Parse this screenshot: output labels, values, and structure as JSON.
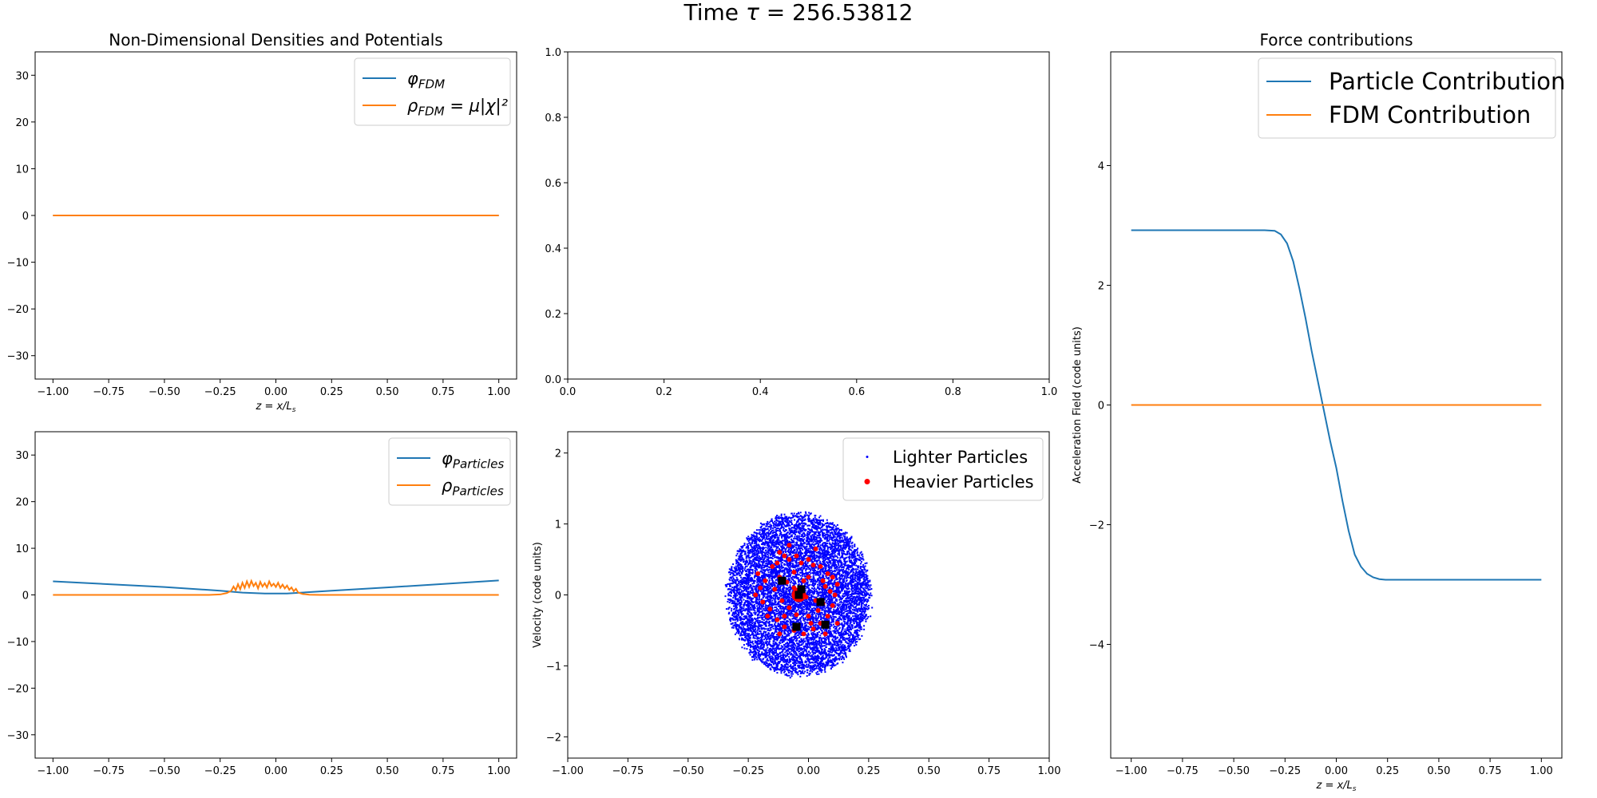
{
  "figure": {
    "suptitle_prefix": "Time ",
    "suptitle_tau": "τ",
    "suptitle_eq": " = 256.53812"
  },
  "colors": {
    "c0": "#1f77b4",
    "c1": "#ff7f0e",
    "light": "#0000ff",
    "heavy": "#ff0000",
    "black_hole": "#000000"
  },
  "chart_data": [
    {
      "id": "fdm",
      "type": "line",
      "title": "Non-Dimensional Densities and Potentials",
      "xlabel": "z = x/L_s",
      "ylabel": "",
      "xlim": [
        -1.08,
        1.08
      ],
      "ylim": [
        -35,
        35
      ],
      "xticks": [
        -1.0,
        -0.75,
        -0.5,
        -0.25,
        0.0,
        0.25,
        0.5,
        0.75,
        1.0
      ],
      "xtick_labels": [
        "−1.00",
        "−0.75",
        "−0.50",
        "−0.25",
        "0.00",
        "0.25",
        "0.50",
        "0.75",
        "1.00"
      ],
      "yticks": [
        -30,
        -20,
        -10,
        0,
        10,
        20,
        30
      ],
      "ytick_labels": [
        "−30",
        "−20",
        "−10",
        "0",
        "10",
        "20",
        "30"
      ],
      "legend_loc": "upper right",
      "series": [
        {
          "name": "φ_FDM",
          "color": "#1f77b4",
          "x": [
            -1.0,
            1.0
          ],
          "y": [
            0.0,
            0.0
          ]
        },
        {
          "name": "ρ_FDM = μ|χ|²",
          "color": "#ff7f0e",
          "x": [
            -1.0,
            1.0
          ],
          "y": [
            0.0,
            0.0
          ]
        }
      ]
    },
    {
      "id": "empty",
      "type": "line",
      "title": "",
      "xlim": [
        0,
        1
      ],
      "ylim": [
        0,
        1
      ],
      "xticks": [
        0,
        0.2,
        0.4,
        0.6,
        0.8,
        1.0
      ],
      "xtick_labels": [
        "0.0",
        "0.2",
        "0.4",
        "0.6",
        "0.8",
        "1.0"
      ],
      "yticks": [
        0,
        0.2,
        0.4,
        0.6,
        0.8,
        1.0
      ],
      "ytick_labels": [
        "0.0",
        "0.2",
        "0.4",
        "0.6",
        "0.8",
        "1.0"
      ],
      "series": []
    },
    {
      "id": "force",
      "type": "line",
      "title": "Force contributions",
      "xlabel": "z = x/L_s",
      "ylabel": "Acceleration Field (code units)",
      "xlim": [
        -1.1,
        1.1
      ],
      "ylim": [
        -5.9,
        5.9
      ],
      "xticks": [
        -1.0,
        -0.75,
        -0.5,
        -0.25,
        0.0,
        0.25,
        0.5,
        0.75,
        1.0
      ],
      "xtick_labels": [
        "−1.00",
        "−0.75",
        "−0.50",
        "−0.25",
        "0.00",
        "0.25",
        "0.50",
        "0.75",
        "1.00"
      ],
      "yticks": [
        -4,
        -2,
        0,
        2,
        4
      ],
      "ytick_labels": [
        "−4",
        "−2",
        "0",
        "2",
        "4"
      ],
      "legend_loc": "upper right",
      "series": [
        {
          "name": "Particle Contribution",
          "color": "#1f77b4",
          "x": [
            -1.0,
            -0.5,
            -0.35,
            -0.3,
            -0.27,
            -0.24,
            -0.21,
            -0.18,
            -0.15,
            -0.12,
            -0.09,
            -0.06,
            -0.03,
            0.0,
            0.03,
            0.06,
            0.09,
            0.12,
            0.15,
            0.18,
            0.21,
            0.24,
            0.3,
            1.0
          ],
          "y": [
            2.92,
            2.92,
            2.92,
            2.91,
            2.85,
            2.7,
            2.4,
            1.95,
            1.45,
            0.9,
            0.4,
            -0.1,
            -0.6,
            -1.05,
            -1.6,
            -2.1,
            -2.5,
            -2.7,
            -2.82,
            -2.88,
            -2.91,
            -2.92,
            -2.92,
            -2.92
          ]
        },
        {
          "name": "FDM Contribution",
          "color": "#ff7f0e",
          "x": [
            -1.0,
            1.0
          ],
          "y": [
            0.0,
            0.0
          ]
        }
      ]
    },
    {
      "id": "particles_pot",
      "type": "line",
      "title": "",
      "xlabel": "",
      "ylabel": "",
      "xlim": [
        -1.08,
        1.08
      ],
      "ylim": [
        -35,
        35
      ],
      "xticks": [
        -1.0,
        -0.75,
        -0.5,
        -0.25,
        0.0,
        0.25,
        0.5,
        0.75,
        1.0
      ],
      "xtick_labels": [
        "−1.00",
        "−0.75",
        "−0.50",
        "−0.25",
        "0.00",
        "0.25",
        "0.50",
        "0.75",
        "1.00"
      ],
      "yticks": [
        -30,
        -20,
        -10,
        0,
        10,
        20,
        30
      ],
      "ytick_labels": [
        "−30",
        "−20",
        "−10",
        "0",
        "10",
        "20",
        "30"
      ],
      "legend_loc": "upper right",
      "series": [
        {
          "name": "φ_Particles",
          "color": "#1f77b4",
          "x": [
            -1.0,
            -0.5,
            -0.25,
            -0.15,
            -0.05,
            0.05,
            0.15,
            0.25,
            0.5,
            1.0
          ],
          "y": [
            2.9,
            1.7,
            0.9,
            0.5,
            0.3,
            0.3,
            0.6,
            0.9,
            1.6,
            3.1
          ]
        },
        {
          "name": "ρ_Particles",
          "color": "#ff7f0e",
          "x": [
            -1.0,
            -0.3,
            -0.25,
            -0.22,
            -0.2,
            -0.19,
            -0.18,
            -0.17,
            -0.16,
            -0.15,
            -0.14,
            -0.13,
            -0.12,
            -0.11,
            -0.1,
            -0.09,
            -0.08,
            -0.07,
            -0.06,
            -0.05,
            -0.04,
            -0.03,
            -0.02,
            -0.01,
            0.0,
            0.01,
            0.02,
            0.03,
            0.04,
            0.05,
            0.06,
            0.07,
            0.08,
            0.09,
            0.1,
            0.12,
            0.15,
            0.2,
            0.25,
            1.0
          ],
          "y": [
            0.0,
            0.0,
            0.1,
            0.4,
            0.9,
            1.8,
            1.0,
            2.3,
            1.2,
            2.6,
            1.5,
            2.9,
            1.7,
            3.0,
            1.9,
            2.6,
            1.4,
            2.8,
            1.8,
            2.5,
            1.6,
            2.9,
            1.9,
            2.4,
            1.7,
            2.6,
            1.5,
            2.2,
            1.4,
            2.0,
            1.1,
            1.6,
            0.8,
            1.3,
            0.5,
            0.2,
            0.05,
            0.0,
            0.0,
            0.0
          ]
        }
      ]
    },
    {
      "id": "phase",
      "type": "scatter",
      "title": "",
      "xlabel": "",
      "ylabel": "Velocity (code units)",
      "xlim": [
        -1.0,
        1.0
      ],
      "ylim": [
        -2.3,
        2.3
      ],
      "xticks": [
        -1.0,
        -0.75,
        -0.5,
        -0.25,
        0.0,
        0.25,
        0.5,
        0.75,
        1.0
      ],
      "xtick_labels": [
        "−1.00",
        "−0.75",
        "−0.50",
        "−0.25",
        "0.00",
        "0.25",
        "0.50",
        "0.75",
        "1.00"
      ],
      "yticks": [
        -2,
        -1,
        0,
        1,
        2
      ],
      "ytick_labels": [
        "−2",
        "−1",
        "0",
        "1",
        "2"
      ],
      "legend_loc": "upper right",
      "light_cloud": {
        "center": [
          -0.04,
          0.0
        ],
        "radius_x": 0.3,
        "radius_y": 1.15
      },
      "series": [
        {
          "name": "Lighter Particles",
          "color": "#0000ff"
        },
        {
          "name": "Heavier Particles",
          "color": "#ff0000"
        }
      ],
      "heavy_points": [
        [
          -0.12,
          0.6
        ],
        [
          -0.1,
          0.55
        ],
        [
          -0.08,
          0.5
        ],
        [
          -0.05,
          0.55
        ],
        [
          -0.03,
          0.45
        ],
        [
          0.0,
          0.5
        ],
        [
          0.02,
          0.42
        ],
        [
          0.05,
          0.4
        ],
        [
          0.08,
          0.3
        ],
        [
          -0.15,
          0.4
        ],
        [
          -0.18,
          0.2
        ],
        [
          -0.2,
          0.1
        ],
        [
          -0.22,
          0.0
        ],
        [
          -0.19,
          -0.1
        ],
        [
          -0.16,
          -0.2
        ],
        [
          -0.13,
          -0.35
        ],
        [
          -0.1,
          -0.45
        ],
        [
          -0.06,
          -0.5
        ],
        [
          -0.02,
          -0.55
        ],
        [
          0.02,
          -0.48
        ],
        [
          0.05,
          -0.4
        ],
        [
          0.08,
          -0.3
        ],
        [
          0.1,
          -0.15
        ],
        [
          0.11,
          0.0
        ],
        [
          0.12,
          0.15
        ],
        [
          0.1,
          0.25
        ],
        [
          -0.12,
          0.25
        ],
        [
          -0.09,
          0.18
        ],
        [
          -0.06,
          0.1
        ],
        [
          -0.03,
          0.05
        ],
        [
          -0.01,
          -0.03
        ],
        [
          0.03,
          -0.08
        ],
        [
          0.06,
          -0.12
        ],
        [
          -0.11,
          -0.08
        ],
        [
          -0.08,
          -0.18
        ],
        [
          -0.05,
          -0.28
        ],
        [
          0.0,
          -0.3
        ],
        [
          0.04,
          -0.22
        ],
        [
          -0.14,
          0.08
        ],
        [
          -0.06,
          0.32
        ],
        [
          0.0,
          0.25
        ],
        [
          0.06,
          0.2
        ],
        [
          0.09,
          0.05
        ],
        [
          -0.17,
          -0.3
        ],
        [
          -0.12,
          -0.55
        ],
        [
          0.07,
          -0.55
        ],
        [
          0.12,
          -0.4
        ],
        [
          -0.21,
          0.3
        ],
        [
          -0.08,
          0.7
        ],
        [
          0.03,
          0.65
        ],
        [
          -0.13,
          0.45
        ],
        [
          -0.02,
          0.2
        ],
        [
          0.07,
          0.12
        ],
        [
          -0.1,
          -0.3
        ],
        [
          0.01,
          -0.4
        ],
        [
          -0.04,
          0.0
        ],
        [
          -0.03,
          0.02
        ],
        [
          -0.05,
          -0.02
        ],
        [
          -0.02,
          -0.01
        ],
        [
          -0.04,
          0.04
        ]
      ],
      "black_points": [
        [
          -0.11,
          0.2
        ],
        [
          -0.03,
          0.08
        ],
        [
          0.05,
          -0.1
        ],
        [
          -0.05,
          -0.45
        ],
        [
          0.07,
          -0.42
        ],
        [
          -0.04,
          0.0
        ]
      ]
    }
  ]
}
